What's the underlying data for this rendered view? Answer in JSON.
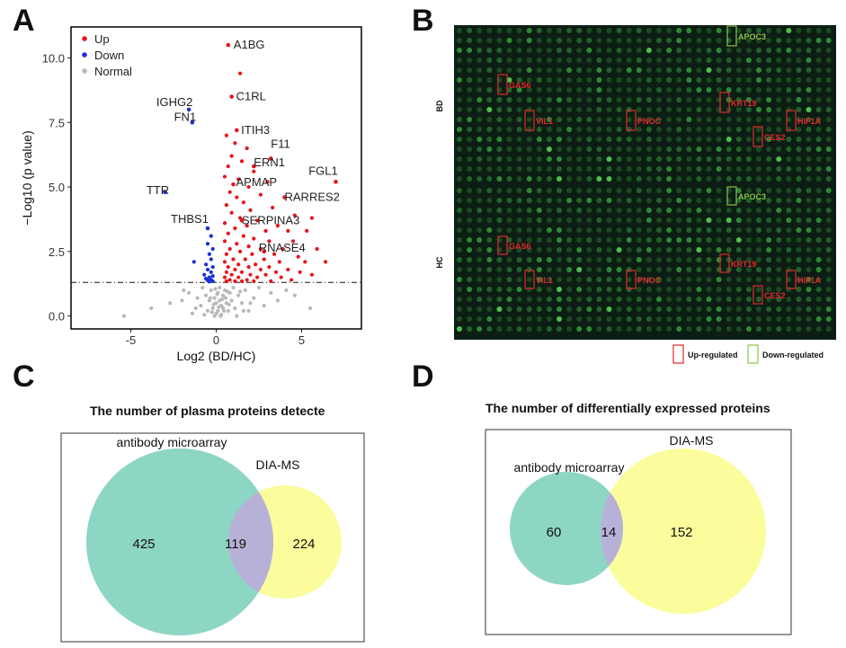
{
  "panels": {
    "a": {
      "letter": "A"
    },
    "b": {
      "letter": "B"
    },
    "c": {
      "letter": "C"
    },
    "d": {
      "letter": "D"
    }
  },
  "colors": {
    "up": "#e8141a",
    "down": "#1b2fd6",
    "normal": "#b8b8b8",
    "overlap": "#b7b1d8",
    "teal": "#8ed6c4",
    "yellow": "#fbfc9c",
    "array_bg": "#0c1e14",
    "spot": "#2a6b2e",
    "up_box": "#e0292d",
    "down_box": "#8bc34a"
  },
  "chart_data": [
    {
      "type": "scatter",
      "panel": "A",
      "title": "",
      "xlabel": "Log2 (BD/HC)",
      "ylabel": "−Log10 (p value)",
      "xlim": [
        -8.5,
        8.5
      ],
      "ylim": [
        -0.5,
        11.2
      ],
      "xticks": [
        -5,
        0,
        5
      ],
      "yticks": [
        0.0,
        2.5,
        5.0,
        7.5,
        10.0
      ],
      "xtick_labels": [
        "-5",
        "0",
        "5"
      ],
      "ytick_labels": [
        "0.0",
        "2.5",
        "5.0",
        "7.5",
        "10.0"
      ],
      "threshold_y": 1.3,
      "legend": [
        {
          "key": "up",
          "label": "Up"
        },
        {
          "key": "down",
          "label": "Down"
        },
        {
          "key": "normal",
          "label": "Normal"
        }
      ],
      "labeled_points": [
        {
          "gene": "A1BG",
          "x": 0.7,
          "y": 10.5,
          "group": "up"
        },
        {
          "gene": "C1RL",
          "x": 0.9,
          "y": 8.5,
          "group": "up"
        },
        {
          "gene": "IGHG2",
          "x": -1.6,
          "y": 8.0,
          "group": "down"
        },
        {
          "gene": "FN1",
          "x": -1.4,
          "y": 7.5,
          "group": "down"
        },
        {
          "gene": "ITIH3",
          "x": 1.2,
          "y": 7.2,
          "group": "up"
        },
        {
          "gene": "F11",
          "x": 3.2,
          "y": 6.1,
          "group": "up"
        },
        {
          "gene": "ERN1",
          "x": 2.2,
          "y": 5.8,
          "group": "up"
        },
        {
          "gene": "FGL1",
          "x": 7.0,
          "y": 5.2,
          "group": "up"
        },
        {
          "gene": "APMAP",
          "x": 1.0,
          "y": 5.1,
          "group": "up"
        },
        {
          "gene": "TTR",
          "x": -3.0,
          "y": 4.8,
          "group": "down"
        },
        {
          "gene": "RARRES2",
          "x": 4.0,
          "y": 4.6,
          "group": "up"
        },
        {
          "gene": "SERPINA3",
          "x": 1.5,
          "y": 3.7,
          "group": "up"
        },
        {
          "gene": "THBS1",
          "x": -0.5,
          "y": 3.4,
          "group": "down"
        },
        {
          "gene": "RNASE4",
          "x": 2.8,
          "y": 2.5,
          "group": "up"
        }
      ],
      "up": [
        [
          1.4,
          9.4
        ],
        [
          0.6,
          7.0
        ],
        [
          1.1,
          6.7
        ],
        [
          1.8,
          6.5
        ],
        [
          0.9,
          6.2
        ],
        [
          1.5,
          6.0
        ],
        [
          0.7,
          5.8
        ],
        [
          2.2,
          5.6
        ],
        [
          0.5,
          5.4
        ],
        [
          1.3,
          5.3
        ],
        [
          3.0,
          5.2
        ],
        [
          1.9,
          5.0
        ],
        [
          0.8,
          4.8
        ],
        [
          2.6,
          4.7
        ],
        [
          1.2,
          4.6
        ],
        [
          1.6,
          4.4
        ],
        [
          0.6,
          4.3
        ],
        [
          3.3,
          4.2
        ],
        [
          2.0,
          4.1
        ],
        [
          0.9,
          4.0
        ],
        [
          4.6,
          3.9
        ],
        [
          5.6,
          3.8
        ],
        [
          1.4,
          3.8
        ],
        [
          2.4,
          3.7
        ],
        [
          0.5,
          3.6
        ],
        [
          1.8,
          3.5
        ],
        [
          3.6,
          3.5
        ],
        [
          1.1,
          3.4
        ],
        [
          2.9,
          3.3
        ],
        [
          4.2,
          3.3
        ],
        [
          5.3,
          3.3
        ],
        [
          0.7,
          3.2
        ],
        [
          1.6,
          3.1
        ],
        [
          2.2,
          3.0
        ],
        [
          0.5,
          2.9
        ],
        [
          3.1,
          2.9
        ],
        [
          4.5,
          2.9
        ],
        [
          1.2,
          2.8
        ],
        [
          1.9,
          2.7
        ],
        [
          0.8,
          2.6
        ],
        [
          2.6,
          2.6
        ],
        [
          3.9,
          2.6
        ],
        [
          5.9,
          2.6
        ],
        [
          1.4,
          2.5
        ],
        [
          0.6,
          2.4
        ],
        [
          2.1,
          2.4
        ],
        [
          3.4,
          2.4
        ],
        [
          4.8,
          2.3
        ],
        [
          1.0,
          2.2
        ],
        [
          1.7,
          2.2
        ],
        [
          2.8,
          2.2
        ],
        [
          0.5,
          2.1
        ],
        [
          3.7,
          2.1
        ],
        [
          5.2,
          2.1
        ],
        [
          1.3,
          2.0
        ],
        [
          2.3,
          2.0
        ],
        [
          0.7,
          1.9
        ],
        [
          1.9,
          1.9
        ],
        [
          3.1,
          1.9
        ],
        [
          6.4,
          2.1
        ],
        [
          4.2,
          1.8
        ],
        [
          1.1,
          1.8
        ],
        [
          2.6,
          1.8
        ],
        [
          0.6,
          1.7
        ],
        [
          1.5,
          1.7
        ],
        [
          3.5,
          1.7
        ],
        [
          4.9,
          1.7
        ],
        [
          0.9,
          1.6
        ],
        [
          2.0,
          1.6
        ],
        [
          2.9,
          1.6
        ],
        [
          5.6,
          1.6
        ],
        [
          0.5,
          1.5
        ],
        [
          1.3,
          1.5
        ],
        [
          2.4,
          1.5
        ],
        [
          3.8,
          1.5
        ],
        [
          0.8,
          1.4
        ],
        [
          1.8,
          1.4
        ],
        [
          4.4,
          1.4
        ],
        [
          1.1,
          1.35
        ],
        [
          3.2,
          1.35
        ],
        [
          2.2,
          1.35
        ],
        [
          0.6,
          1.35
        ],
        [
          1.5,
          1.35
        ]
      ],
      "down": [
        [
          -0.3,
          3.1
        ],
        [
          -0.5,
          2.8
        ],
        [
          -0.2,
          2.6
        ],
        [
          -0.4,
          2.4
        ],
        [
          -0.3,
          2.2
        ],
        [
          -1.3,
          2.1
        ],
        [
          -0.6,
          2.0
        ],
        [
          -0.2,
          1.9
        ],
        [
          -0.5,
          1.8
        ],
        [
          -0.3,
          1.7
        ],
        [
          -0.7,
          1.6
        ],
        [
          -0.2,
          1.55
        ],
        [
          -0.4,
          1.5
        ],
        [
          -0.6,
          1.45
        ],
        [
          -0.3,
          1.4
        ],
        [
          -0.5,
          1.38
        ],
        [
          -0.2,
          1.35
        ],
        [
          -0.4,
          1.33
        ]
      ],
      "normal": [
        [
          -5.4,
          0.0
        ],
        [
          -3.8,
          0.3
        ],
        [
          -2.7,
          0.5
        ],
        [
          -2.0,
          0.6
        ],
        [
          -1.6,
          0.9
        ],
        [
          -1.4,
          0.1
        ],
        [
          -1.1,
          0.7
        ],
        [
          -0.9,
          0.4
        ],
        [
          -0.8,
          1.1
        ],
        [
          -0.6,
          0.8
        ],
        [
          -0.5,
          0.2
        ],
        [
          -0.4,
          0.6
        ],
        [
          -0.3,
          1.0
        ],
        [
          -0.2,
          0.3
        ],
        [
          -0.1,
          0.7
        ],
        [
          0.0,
          0.1
        ],
        [
          0.0,
          0.5
        ],
        [
          0.1,
          0.9
        ],
        [
          0.1,
          0.2
        ],
        [
          0.2,
          0.6
        ],
        [
          0.2,
          1.1
        ],
        [
          0.3,
          0.4
        ],
        [
          0.3,
          0.05
        ],
        [
          0.4,
          0.8
        ],
        [
          0.4,
          0.3
        ],
        [
          0.5,
          1.0
        ],
        [
          0.6,
          0.5
        ],
        [
          0.7,
          0.2
        ],
        [
          0.8,
          0.9
        ],
        [
          0.9,
          0.6
        ],
        [
          1.0,
          1.1
        ],
        [
          1.1,
          0.3
        ],
        [
          1.3,
          0.8
        ],
        [
          1.5,
          0.5
        ],
        [
          1.7,
          1.0
        ],
        [
          1.9,
          0.2
        ],
        [
          2.2,
          0.7
        ],
        [
          2.5,
          1.1
        ],
        [
          2.8,
          0.4
        ],
        [
          3.2,
          0.9
        ],
        [
          3.6,
          0.6
        ],
        [
          4.1,
          1.0
        ],
        [
          4.6,
          0.8
        ],
        [
          5.5,
          0.3
        ],
        [
          -0.1,
          0.0
        ],
        [
          0.15,
          0.35
        ],
        [
          -0.25,
          0.15
        ],
        [
          0.35,
          0.65
        ],
        [
          0.05,
          0.85
        ],
        [
          -0.15,
          0.45
        ],
        [
          0.25,
          0.0
        ],
        [
          -0.35,
          0.7
        ],
        [
          0.45,
          0.2
        ],
        [
          0.55,
          0.7
        ],
        [
          -0.05,
          1.05
        ],
        [
          0.65,
          0.95
        ],
        [
          1.2,
          0.0
        ],
        [
          1.6,
          0.2
        ],
        [
          2.0,
          0.5
        ],
        [
          -1.9,
          1.0
        ],
        [
          -1.2,
          0.3
        ],
        [
          -0.7,
          0.05
        ],
        [
          0.75,
          0.45
        ],
        [
          1.4,
          0.95
        ]
      ]
    },
    {
      "type": "venn",
      "panel": "C",
      "title": "The number of  plasma proteins detecte",
      "sets": [
        {
          "label": "antibody microarray",
          "only": "425"
        },
        {
          "label": "DIA-MS",
          "only": "224"
        }
      ],
      "overlap": "119"
    },
    {
      "type": "venn",
      "panel": "D",
      "title": "The number of differentially expressed proteins",
      "sets": [
        {
          "label": "antibody microarray",
          "only": "60"
        },
        {
          "label": "DIA-MS",
          "only": "152"
        }
      ],
      "overlap": "14"
    }
  ],
  "microarray": {
    "rows": [
      {
        "label": "BD"
      },
      {
        "label": "HC"
      }
    ],
    "proteins": [
      {
        "name": "APOC3",
        "reg": "down"
      },
      {
        "name": "GAS6",
        "reg": "up"
      },
      {
        "name": "KRT19",
        "reg": "up"
      },
      {
        "name": "VIL1",
        "reg": "up"
      },
      {
        "name": "PNOC",
        "reg": "up"
      },
      {
        "name": "HIF1A",
        "reg": "up"
      },
      {
        "name": "CES2",
        "reg": "up"
      }
    ],
    "legend": [
      {
        "label": "Up-regulated",
        "reg": "up"
      },
      {
        "label": "Down-regulated",
        "reg": "down"
      }
    ]
  }
}
